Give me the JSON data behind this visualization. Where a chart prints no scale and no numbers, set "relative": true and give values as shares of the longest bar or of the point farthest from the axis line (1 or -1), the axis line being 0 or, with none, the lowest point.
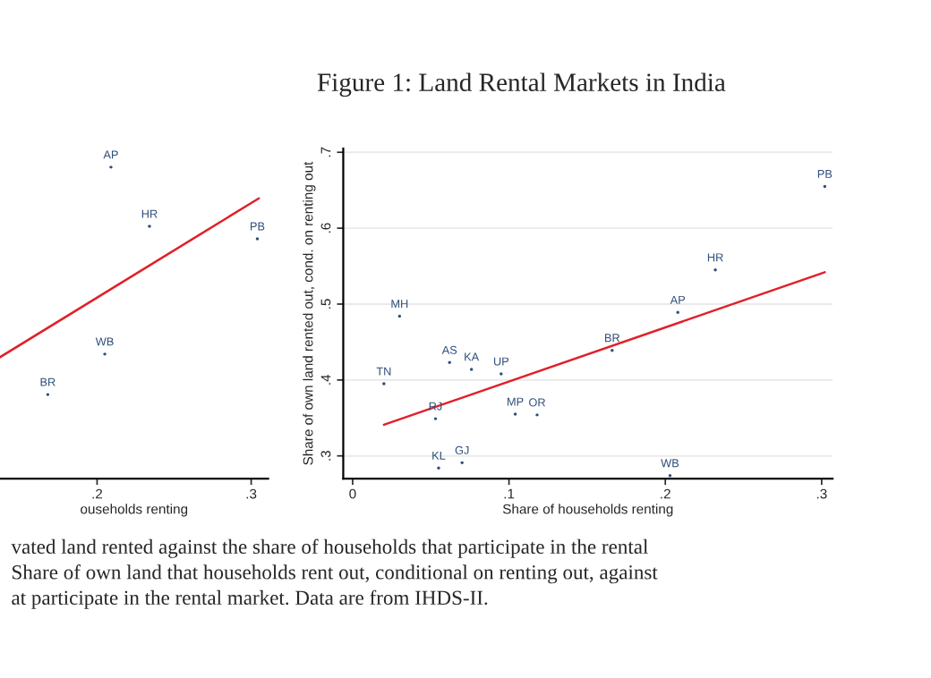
{
  "chart_data": [
    {
      "type": "scatter",
      "xlabel": "ouseholds renting",
      "relative": true,
      "tick_labels": "x",
      "marker": "circle",
      "xlim": [
        0.137,
        0.311
      ],
      "xticks": [
        {
          "value": 0.2,
          "label": ".2"
        },
        {
          "value": 0.3,
          "label": ".3"
        }
      ],
      "series": [
        {
          "type": "line",
          "color": "#e0202a",
          "marker": "none",
          "x": [
            0.137,
            0.305
          ],
          "values": [
            0.39,
            0.9
          ]
        },
        {
          "name": "AP",
          "color": "#2f4f7a",
          "x": [
            0.209
          ],
          "values": [
            1.0
          ]
        },
        {
          "name": "HR",
          "color": "#2f4f7a",
          "x": [
            0.234
          ],
          "values": [
            0.81
          ]
        },
        {
          "name": "PB",
          "color": "#2f4f7a",
          "x": [
            0.304
          ],
          "values": [
            0.77
          ]
        },
        {
          "name": "WB",
          "color": "#2f4f7a",
          "x": [
            0.205
          ],
          "values": [
            0.4
          ]
        },
        {
          "name": "BR",
          "color": "#2f4f7a",
          "x": [
            0.168
          ],
          "values": [
            0.27
          ]
        }
      ],
      "annotations": [
        "vated land rented against the share of households that participate in the rental\nShare of own land that households rent out, conditional on renting out, against\nat participate in the rental market. Data are from IHDS-II."
      ]
    },
    {
      "type": "scatter",
      "title": "Figure 1: Land Rental Markets in India",
      "xlabel": "Share of households renting",
      "ylabel": "Share of own land rented out, cond. on renting out",
      "grid": "y",
      "marker": "circle",
      "xlim": [
        -0.006,
        0.307
      ],
      "xticks": [
        0,
        {
          "value": 0.1,
          "label": ".1"
        },
        {
          "value": 0.2,
          "label": ".2"
        },
        {
          "value": 0.3,
          "label": ".3"
        }
      ],
      "ylim": [
        0.27,
        0.705
      ],
      "yticks": [
        {
          "value": 0.3,
          "label": ".3"
        },
        {
          "value": 0.4,
          "label": ".4"
        },
        {
          "value": 0.5,
          "label": ".5"
        },
        {
          "value": 0.6,
          "label": ".6"
        },
        {
          "value": 0.7,
          "label": ".7"
        }
      ],
      "series": [
        {
          "type": "line",
          "color": "#e0202a",
          "marker": "none",
          "x": [
            0.02,
            0.302
          ],
          "values": [
            0.341,
            0.542
          ]
        },
        {
          "name": "MH",
          "color": "#2f4f7a",
          "x": [
            0.03
          ],
          "values": [
            0.484
          ]
        },
        {
          "name": "TN",
          "color": "#2f4f7a",
          "x": [
            0.02
          ],
          "values": [
            0.395
          ]
        },
        {
          "name": "AS",
          "color": "#2f4f7a",
          "x": [
            0.062
          ],
          "values": [
            0.423
          ]
        },
        {
          "name": "KA",
          "color": "#2f4f7a",
          "x": [
            0.076
          ],
          "values": [
            0.414
          ]
        },
        {
          "name": "UP",
          "color": "#2f4f7a",
          "x": [
            0.095
          ],
          "values": [
            0.408
          ]
        },
        {
          "name": "RJ",
          "color": "#2f4f7a",
          "x": [
            0.053
          ],
          "values": [
            0.349
          ]
        },
        {
          "name": "MP",
          "color": "#2f4f7a",
          "x": [
            0.104
          ],
          "values": [
            0.355
          ]
        },
        {
          "name": "OR",
          "color": "#2f4f7a",
          "x": [
            0.118
          ],
          "values": [
            0.354
          ]
        },
        {
          "name": "KL",
          "color": "#2f4f7a",
          "x": [
            0.055
          ],
          "values": [
            0.284
          ]
        },
        {
          "name": "GJ",
          "color": "#2f4f7a",
          "x": [
            0.07
          ],
          "values": [
            0.291
          ]
        },
        {
          "name": "BR",
          "color": "#2f4f7a",
          "x": [
            0.166
          ],
          "values": [
            0.439
          ]
        },
        {
          "name": "AP",
          "color": "#2f4f7a",
          "x": [
            0.208
          ],
          "values": [
            0.489
          ]
        },
        {
          "name": "HR",
          "color": "#2f4f7a",
          "x": [
            0.232
          ],
          "values": [
            0.545
          ]
        },
        {
          "name": "PB",
          "color": "#2f4f7a",
          "x": [
            0.302
          ],
          "values": [
            0.655
          ]
        },
        {
          "name": "WB",
          "color": "#2f4f7a",
          "x": [
            0.203
          ],
          "values": [
            0.274
          ]
        }
      ]
    }
  ]
}
